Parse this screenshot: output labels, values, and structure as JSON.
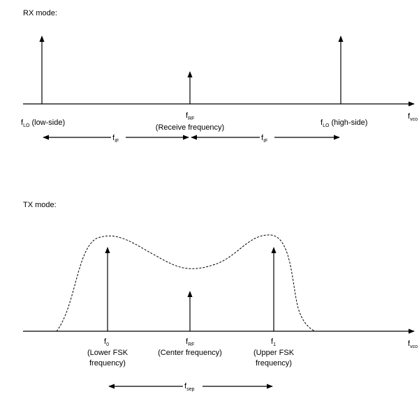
{
  "rx": {
    "title": "RX mode:",
    "axis_label": {
      "main": "f",
      "sub": "vco"
    },
    "lo_low": {
      "main": "f",
      "sub": "LO",
      "text": " (low-side)"
    },
    "rf": {
      "main": "f",
      "sub": "RF",
      "line2": "(Receive frequency)"
    },
    "lo_high": {
      "main": "f",
      "sub": "LO",
      "text": " (high-side)"
    },
    "if_left": {
      "main": "f",
      "sub": "IF"
    },
    "if_right": {
      "main": "f",
      "sub": "IF"
    }
  },
  "tx": {
    "title": "TX mode:",
    "axis_label": {
      "main": "f",
      "sub": "vco"
    },
    "f0": {
      "main": "f",
      "sub": "0",
      "line2": "(Lower FSK",
      "line3": "frequency)"
    },
    "rf": {
      "main": "f",
      "sub": "RF",
      "line2": "(Center frequency)"
    },
    "f1": {
      "main": "f",
      "sub": "1",
      "line2": "(Upper FSK",
      "line3": "frequency)"
    },
    "sep": {
      "main": "f",
      "sub": "sep"
    }
  }
}
